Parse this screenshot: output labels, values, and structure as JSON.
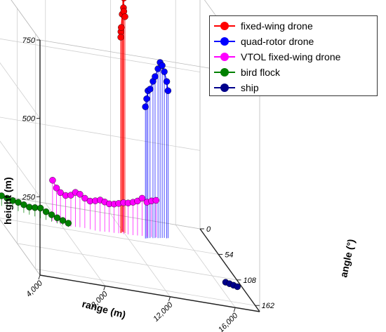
{
  "chart_data": {
    "type": "scatter",
    "projection": "3d",
    "xlabel": "range (m)",
    "ylabel": "angle (°)",
    "zlabel": "height (m)",
    "x_ticks": [
      "4,000",
      "8,000",
      "12,000",
      "16,000"
    ],
    "y_ticks": [
      "0",
      "54",
      "108",
      "162"
    ],
    "z_ticks": [
      "250",
      "500",
      "750"
    ],
    "xlim": [
      4000,
      17500
    ],
    "ylim": [
      0,
      175
    ],
    "zlim": [
      0,
      750
    ],
    "grid": true,
    "drop_lines": true,
    "legend_position": "top-right",
    "series": [
      {
        "name": "fixed-wing drone",
        "color": "#ff0000",
        "points": [
          {
            "x": 11800,
            "y": 40,
            "z": 640
          },
          {
            "x": 11750,
            "y": 42,
            "z": 625
          },
          {
            "x": 11800,
            "y": 41,
            "z": 655
          },
          {
            "x": 11900,
            "y": 39,
            "z": 695
          },
          {
            "x": 12000,
            "y": 38,
            "z": 715
          },
          {
            "x": 12050,
            "y": 37,
            "z": 745
          },
          {
            "x": 11950,
            "y": 38,
            "z": 750
          },
          {
            "x": 12000,
            "y": 39,
            "z": 705
          },
          {
            "x": 12050,
            "y": 40,
            "z": 690
          }
        ]
      },
      {
        "name": "quad-rotor drone",
        "color": "#0000ff",
        "points": [
          {
            "x": 13200,
            "y": 45,
            "z": 420
          },
          {
            "x": 13300,
            "y": 44,
            "z": 445
          },
          {
            "x": 13400,
            "y": 43,
            "z": 470
          },
          {
            "x": 13550,
            "y": 42,
            "z": 475
          },
          {
            "x": 13750,
            "y": 41,
            "z": 500
          },
          {
            "x": 13900,
            "y": 40,
            "z": 515
          },
          {
            "x": 14100,
            "y": 39,
            "z": 540
          },
          {
            "x": 14250,
            "y": 38,
            "z": 560
          },
          {
            "x": 14400,
            "y": 37,
            "z": 550
          },
          {
            "x": 14550,
            "y": 36,
            "z": 530
          },
          {
            "x": 14700,
            "y": 36,
            "z": 500
          },
          {
            "x": 14800,
            "y": 35,
            "z": 470
          }
        ]
      },
      {
        "name": "VTOL fixed-wing drone",
        "color": "#ff00ff",
        "points": [
          {
            "x": 7600,
            "y": 40,
            "z": 130
          },
          {
            "x": 7800,
            "y": 42,
            "z": 110
          },
          {
            "x": 8000,
            "y": 44,
            "z": 100
          },
          {
            "x": 8300,
            "y": 45,
            "z": 95
          },
          {
            "x": 8600,
            "y": 46,
            "z": 100
          },
          {
            "x": 8900,
            "y": 45,
            "z": 110
          },
          {
            "x": 9200,
            "y": 44,
            "z": 105
          },
          {
            "x": 9500,
            "y": 44,
            "z": 95
          },
          {
            "x": 9800,
            "y": 45,
            "z": 90
          },
          {
            "x": 10100,
            "y": 46,
            "z": 95
          },
          {
            "x": 10400,
            "y": 46,
            "z": 100
          },
          {
            "x": 10700,
            "y": 45,
            "z": 95
          },
          {
            "x": 11000,
            "y": 44,
            "z": 90
          },
          {
            "x": 11300,
            "y": 44,
            "z": 92
          },
          {
            "x": 11600,
            "y": 43,
            "z": 95
          },
          {
            "x": 11900,
            "y": 43,
            "z": 100
          },
          {
            "x": 12200,
            "y": 42,
            "z": 100
          },
          {
            "x": 12500,
            "y": 42,
            "z": 105
          },
          {
            "x": 12800,
            "y": 41,
            "z": 110
          },
          {
            "x": 13100,
            "y": 40,
            "z": 120
          },
          {
            "x": 13400,
            "y": 40,
            "z": 110
          },
          {
            "x": 13700,
            "y": 39,
            "z": 115
          },
          {
            "x": 14000,
            "y": 38,
            "z": 118
          }
        ]
      },
      {
        "name": "bird flock",
        "color": "#008000",
        "points": [
          {
            "x": 4200,
            "y": 20,
            "z": 40
          },
          {
            "x": 4500,
            "y": 22,
            "z": 35
          },
          {
            "x": 4800,
            "y": 24,
            "z": 32
          },
          {
            "x": 5100,
            "y": 26,
            "z": 30
          },
          {
            "x": 5400,
            "y": 28,
            "z": 28
          },
          {
            "x": 5700,
            "y": 30,
            "z": 28
          },
          {
            "x": 6000,
            "y": 32,
            "z": 26
          },
          {
            "x": 6300,
            "y": 34,
            "z": 24
          },
          {
            "x": 6600,
            "y": 36,
            "z": 28
          },
          {
            "x": 6900,
            "y": 38,
            "z": 32
          },
          {
            "x": 7200,
            "y": 40,
            "z": 26
          },
          {
            "x": 7500,
            "y": 42,
            "z": 22
          },
          {
            "x": 7800,
            "y": 44,
            "z": 18
          },
          {
            "x": 8100,
            "y": 46,
            "z": 15
          },
          {
            "x": 8400,
            "y": 48,
            "z": 12
          }
        ]
      },
      {
        "name": "ship",
        "color": "#00008b",
        "points": [
          {
            "x": 16600,
            "y": 118,
            "z": 0
          },
          {
            "x": 16800,
            "y": 120,
            "z": 0
          },
          {
            "x": 17000,
            "y": 122,
            "z": 0
          },
          {
            "x": 17200,
            "y": 124,
            "z": 0
          }
        ]
      }
    ]
  }
}
